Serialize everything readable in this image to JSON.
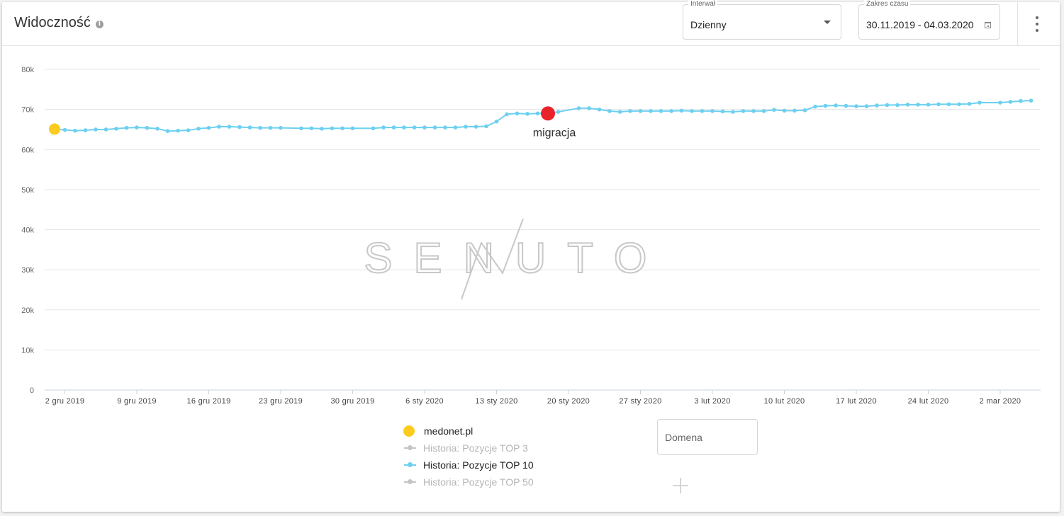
{
  "header": {
    "title": "Widoczność",
    "info_icon": "info-icon",
    "interval": {
      "label": "Interwał",
      "value": "Dzienny"
    },
    "date_range": {
      "label": "Zakres czasu",
      "value": "30.11.2019 - 04.03.2020"
    },
    "menu_icon": "more-vertical-icon"
  },
  "watermark": "SENUTO",
  "legend": {
    "domain": "medonet.pl",
    "domain_color": "#fccb1d",
    "series": [
      {
        "label": "Historia: Pozycje TOP 3",
        "color": "#c4c4c4",
        "active": false
      },
      {
        "label": "Historia: Pozycje TOP 10",
        "color": "#6dd0f0",
        "active": true
      },
      {
        "label": "Historia: Pozycje TOP 50",
        "color": "#c4c4c4",
        "active": false
      }
    ],
    "domain_input_placeholder": "Domena",
    "add_icon": "plus-icon"
  },
  "chart_data": {
    "type": "line",
    "ylim": [
      0,
      80000
    ],
    "y_ticks": [
      {
        "value": 0,
        "label": "0"
      },
      {
        "value": 10000,
        "label": "10k"
      },
      {
        "value": 20000,
        "label": "20k"
      },
      {
        "value": 30000,
        "label": "30k"
      },
      {
        "value": 40000,
        "label": "40k"
      },
      {
        "value": 50000,
        "label": "50k"
      },
      {
        "value": 60000,
        "label": "60k"
      },
      {
        "value": 70000,
        "label": "70k"
      },
      {
        "value": 80000,
        "label": "80k"
      }
    ],
    "x_start": "2019-12-01",
    "x_end": "2020-03-04",
    "x_ticks": [
      {
        "date": "2019-12-02",
        "label": "2 gru 2019"
      },
      {
        "date": "2019-12-09",
        "label": "9 gru 2019"
      },
      {
        "date": "2019-12-16",
        "label": "16 gru 2019"
      },
      {
        "date": "2019-12-23",
        "label": "23 gru 2019"
      },
      {
        "date": "2019-12-30",
        "label": "30 gru 2019"
      },
      {
        "date": "2020-01-06",
        "label": "6 sty 2020"
      },
      {
        "date": "2020-01-13",
        "label": "13 sty 2020"
      },
      {
        "date": "2020-01-20",
        "label": "20 sty 2020"
      },
      {
        "date": "2020-01-27",
        "label": "27 sty 2020"
      },
      {
        "date": "2020-02-03",
        "label": "3 lut 2020"
      },
      {
        "date": "2020-02-10",
        "label": "10 lut 2020"
      },
      {
        "date": "2020-02-17",
        "label": "17 lut 2020"
      },
      {
        "date": "2020-02-24",
        "label": "24 lut 2020"
      },
      {
        "date": "2020-03-02",
        "label": "2 mar 2020"
      }
    ],
    "series": [
      {
        "color": "#6dd0f0",
        "points": [
          [
            "2019-12-01",
            65100
          ],
          [
            "2019-12-02",
            64900
          ],
          [
            "2019-12-03",
            64700
          ],
          [
            "2019-12-04",
            64800
          ],
          [
            "2019-12-05",
            65000
          ],
          [
            "2019-12-06",
            65000
          ],
          [
            "2019-12-07",
            65200
          ],
          [
            "2019-12-08",
            65400
          ],
          [
            "2019-12-09",
            65500
          ],
          [
            "2019-12-10",
            65400
          ],
          [
            "2019-12-11",
            65200
          ],
          [
            "2019-12-12",
            64600
          ],
          [
            "2019-12-13",
            64700
          ],
          [
            "2019-12-14",
            64800
          ],
          [
            "2019-12-15",
            65200
          ],
          [
            "2019-12-16",
            65400
          ],
          [
            "2019-12-17",
            65700
          ],
          [
            "2019-12-18",
            65700
          ],
          [
            "2019-12-19",
            65600
          ],
          [
            "2019-12-20",
            65500
          ],
          [
            "2019-12-21",
            65400
          ],
          [
            "2019-12-22",
            65400
          ],
          [
            "2019-12-23",
            65400
          ],
          [
            "2019-12-25",
            65300
          ],
          [
            "2019-12-26",
            65300
          ],
          [
            "2019-12-27",
            65200
          ],
          [
            "2019-12-28",
            65300
          ],
          [
            "2019-12-29",
            65300
          ],
          [
            "2019-12-30",
            65300
          ],
          [
            "2020-01-01",
            65300
          ],
          [
            "2020-01-02",
            65500
          ],
          [
            "2020-01-03",
            65500
          ],
          [
            "2020-01-04",
            65500
          ],
          [
            "2020-01-05",
            65500
          ],
          [
            "2020-01-06",
            65500
          ],
          [
            "2020-01-07",
            65500
          ],
          [
            "2020-01-08",
            65500
          ],
          [
            "2020-01-09",
            65500
          ],
          [
            "2020-01-10",
            65700
          ],
          [
            "2020-01-11",
            65700
          ],
          [
            "2020-01-12",
            65800
          ],
          [
            "2020-01-13",
            67000
          ],
          [
            "2020-01-14",
            68800
          ],
          [
            "2020-01-15",
            69000
          ],
          [
            "2020-01-16",
            68900
          ],
          [
            "2020-01-17",
            69000
          ],
          [
            "2020-01-18",
            69000
          ],
          [
            "2020-01-19",
            69400
          ],
          [
            "2020-01-21",
            70300
          ],
          [
            "2020-01-22",
            70300
          ],
          [
            "2020-01-23",
            70000
          ],
          [
            "2020-01-24",
            69600
          ],
          [
            "2020-01-25",
            69400
          ],
          [
            "2020-01-26",
            69600
          ],
          [
            "2020-01-27",
            69600
          ],
          [
            "2020-01-28",
            69600
          ],
          [
            "2020-01-29",
            69600
          ],
          [
            "2020-01-30",
            69600
          ],
          [
            "2020-01-31",
            69700
          ],
          [
            "2020-02-01",
            69600
          ],
          [
            "2020-02-02",
            69600
          ],
          [
            "2020-02-03",
            69600
          ],
          [
            "2020-02-04",
            69500
          ],
          [
            "2020-02-05",
            69400
          ],
          [
            "2020-02-06",
            69600
          ],
          [
            "2020-02-07",
            69600
          ],
          [
            "2020-02-08",
            69600
          ],
          [
            "2020-02-09",
            69900
          ],
          [
            "2020-02-10",
            69700
          ],
          [
            "2020-02-11",
            69700
          ],
          [
            "2020-02-12",
            69800
          ],
          [
            "2020-02-13",
            70700
          ],
          [
            "2020-02-14",
            70900
          ],
          [
            "2020-02-15",
            71000
          ],
          [
            "2020-02-16",
            70900
          ],
          [
            "2020-02-17",
            70800
          ],
          [
            "2020-02-18",
            70800
          ],
          [
            "2020-02-19",
            71000
          ],
          [
            "2020-02-20",
            71100
          ],
          [
            "2020-02-21",
            71100
          ],
          [
            "2020-02-22",
            71200
          ],
          [
            "2020-02-23",
            71200
          ],
          [
            "2020-02-24",
            71200
          ],
          [
            "2020-02-25",
            71300
          ],
          [
            "2020-02-26",
            71300
          ],
          [
            "2020-02-27",
            71300
          ],
          [
            "2020-02-28",
            71400
          ],
          [
            "2020-02-29",
            71700
          ],
          [
            "2020-03-02",
            71700
          ],
          [
            "2020-03-03",
            71900
          ],
          [
            "2020-03-04",
            72100
          ],
          [
            "2020-03-05",
            72200
          ]
        ]
      }
    ],
    "annotations": [
      {
        "date": "2019-12-01",
        "value": 65100,
        "color": "#fccb1d",
        "text": ""
      },
      {
        "date": "2020-01-18",
        "value": 69000,
        "color": "#e8232c",
        "text": "migracja"
      }
    ],
    "grid": true
  }
}
